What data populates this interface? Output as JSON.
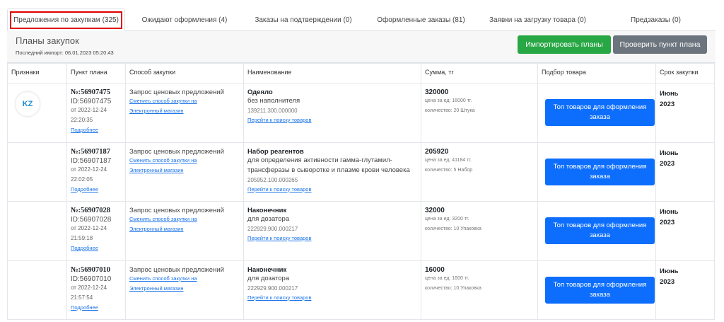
{
  "tabs": [
    {
      "label": "Предложения по закупкам (325)",
      "active": true
    },
    {
      "label": "Ожидают оформления (4)"
    },
    {
      "label": "Заказы на подтверждении (0)"
    },
    {
      "label": "Оформленные заказы (81)"
    },
    {
      "label": "Заявки на загрузку товара (0)"
    },
    {
      "label": "Предзаказы (0)"
    }
  ],
  "header": {
    "title": "Планы закупок",
    "last_import": "Последний импорт: 06.01.2023 05:20:43",
    "import_button": "Импортировать планы",
    "check_button": "Проверить пункт плана"
  },
  "columns": [
    "Признаки",
    "Пункт плана",
    "Способ закупки",
    "Наименование",
    "Сумма, тг",
    "Подбор товара",
    "Срок закупки"
  ],
  "logo_text": "KZ",
  "rows": [
    {
      "num": "№:56907475",
      "id": "ID:56907475",
      "date": "от 2022-12-24",
      "time": "22:20:35",
      "more": "Подробнее",
      "method": "Запрос ценовых предложений",
      "change1": "Сменить способ закупки на",
      "change2": "Электронный магазин",
      "name": "Одеяло",
      "desc": "без наполнителя",
      "code": "139211.300.000000",
      "search": "Перейти к поиску товаров",
      "sum": "320000",
      "price": "цена за ед: 16000 тг.",
      "qty": "количество: 20 Штука",
      "button": "Топ товаров для оформления заказа",
      "term1": "Июнь",
      "term2": "2023"
    },
    {
      "num": "№:56907187",
      "id": "ID:56907187",
      "date": "от 2022-12-24",
      "time": "22:02:05",
      "more": "Подробнее",
      "method": "Запрос ценовых предложений",
      "change1": "Сменить способ закупки на",
      "change2": "Электронный магазин",
      "name": "Набор реагентов",
      "desc": "для определения активности гамма-глутамил-трансферазы в сыворотке и плазме крови человека",
      "code": "205952.100.000265",
      "search": "Перейти к поиску товаров",
      "sum": "205920",
      "price": "цена за ед: 41184 тг.",
      "qty": "количество: 5 Набор",
      "button": "Топ товаров для оформления заказа",
      "term1": "Июнь",
      "term2": "2023"
    },
    {
      "num": "№:56907028",
      "id": "ID:56907028",
      "date": "от 2022-12-24",
      "time": "21:59:18",
      "more": "Подробнее",
      "method": "Запрос ценовых предложений",
      "change1": "Сменить способ закупки на",
      "change2": "Электронный магазин",
      "name": "Наконечник",
      "desc": "для дозатора",
      "code": "222929.900.000217",
      "search": "Перейти к поиску товаров",
      "sum": "32000",
      "price": "цена за ед: 3200 тг.",
      "qty": "количество: 10 Упаковка",
      "button": "Топ товаров для оформления заказа",
      "term1": "Июнь",
      "term2": "2023"
    },
    {
      "num": "№:56907010",
      "id": "ID:56907010",
      "date": "от 2022-12-24",
      "time": "21:57:54",
      "more": "Подробнее",
      "method": "Запрос ценовых предложений",
      "change1": "Сменить способ закупки на",
      "change2": "Электронный магазин",
      "name": "Наконечник",
      "desc": "для дозатора",
      "code": "222929.900.000217",
      "search": "Перейти к поиску товаров",
      "sum": "16000",
      "price": "цена за ед: 1600 тг.",
      "qty": "количество: 10 Упаковка",
      "button": "Топ товаров для оформления заказа",
      "term1": "Июнь",
      "term2": "2023"
    }
  ]
}
